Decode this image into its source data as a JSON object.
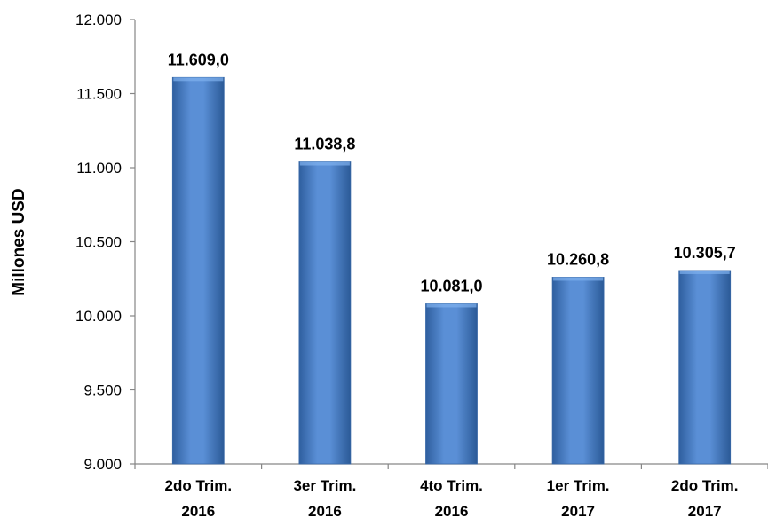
{
  "chart_data": {
    "type": "bar",
    "categories": [
      [
        "2do Trim.",
        "2016"
      ],
      [
        "3er Trim.",
        "2016"
      ],
      [
        "4to Trim.",
        "2016"
      ],
      [
        "1er Trim.",
        "2017"
      ],
      [
        "2do Trim.",
        "2017"
      ]
    ],
    "values": [
      11609.0,
      11038.8,
      10081.0,
      10260.8,
      10305.7
    ],
    "data_labels": [
      "11.609,0",
      "11.038,8",
      "10.081,0",
      "10.260,8",
      "10.305,7"
    ],
    "ylabel": "Millones USD",
    "ylim": [
      9000,
      12000
    ],
    "yticks": [
      9000,
      9500,
      10000,
      10500,
      11000,
      11500,
      12000
    ],
    "ytick_labels": [
      "9.000",
      "9.500",
      "10.000",
      "10.500",
      "11.000",
      "11.500",
      "12.000"
    ],
    "grid": false,
    "legend": "none",
    "colors": {
      "bar": "#4a7ebb",
      "bar_light": "#6d9fe0",
      "bar_dark": "#2e5f9e",
      "axis": "#868686"
    }
  }
}
